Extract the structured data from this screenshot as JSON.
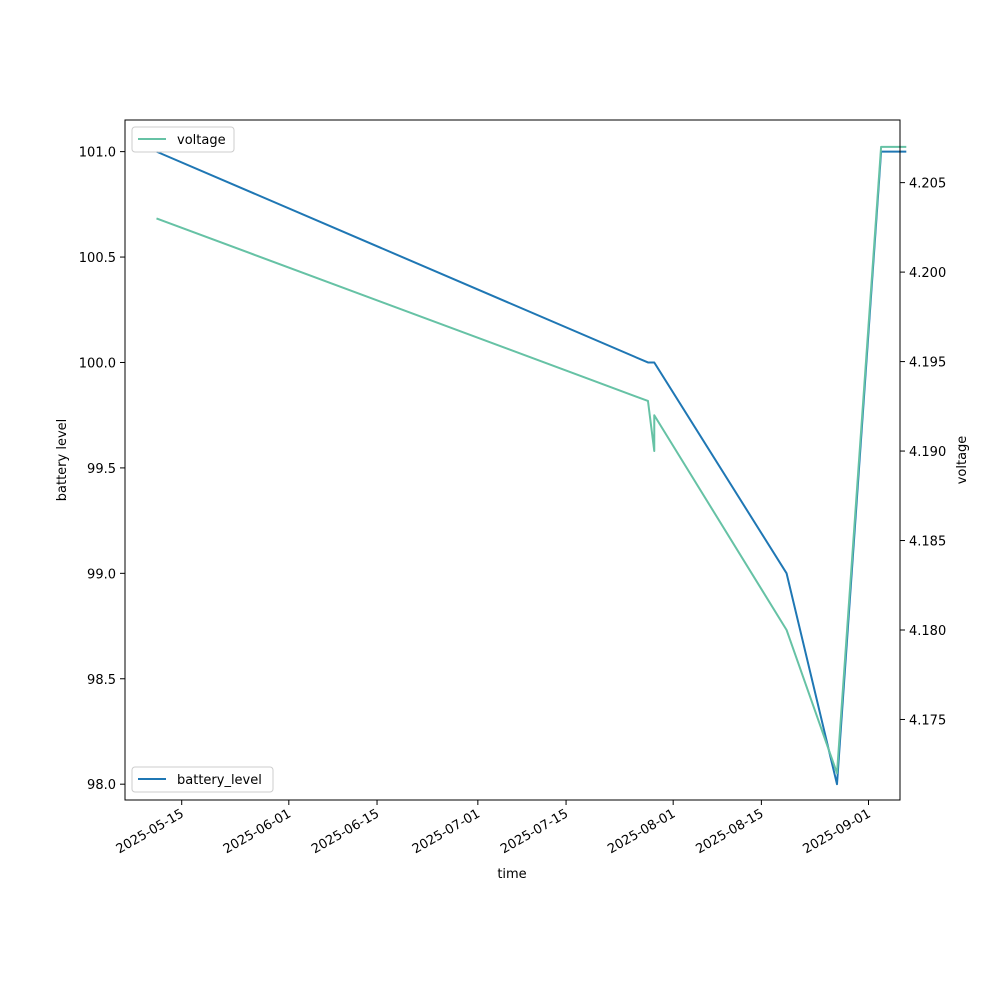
{
  "chart_data": {
    "type": "line",
    "xlabel": "time",
    "ylabel_left": "battery level",
    "ylabel_right": "voltage",
    "x_ticks": [
      "2025-05-15",
      "2025-06-01",
      "2025-06-15",
      "2025-07-01",
      "2025-07-15",
      "2025-08-01",
      "2025-08-15",
      "2025-09-01"
    ],
    "y_left_ticks": [
      "98.0",
      "98.5",
      "99.0",
      "99.5",
      "100.0",
      "100.5",
      "101.0"
    ],
    "y_right_ticks": [
      "4.175",
      "4.180",
      "4.185",
      "4.190",
      "4.195",
      "4.200",
      "4.205"
    ],
    "x_range": [
      "2025-05-06",
      "2025-09-06"
    ],
    "y_left_range": [
      97.925,
      101.15
    ],
    "y_right_range": [
      4.1705,
      4.2085
    ],
    "series": [
      {
        "name": "battery_level",
        "axis": "left",
        "color": "#1f77b4",
        "points": [
          {
            "x": "2025-05-11",
            "y": 101.0
          },
          {
            "x": "2025-07-28",
            "y": 100.0
          },
          {
            "x": "2025-07-29",
            "y": 100.0
          },
          {
            "x": "2025-08-19",
            "y": 99.0
          },
          {
            "x": "2025-08-27",
            "y": 98.0
          },
          {
            "x": "2025-09-03",
            "y": 101.0
          },
          {
            "x": "2025-09-07",
            "y": 101.0
          }
        ]
      },
      {
        "name": "voltage",
        "axis": "right",
        "color": "#66c2a5",
        "points": [
          {
            "x": "2025-05-11",
            "y": 4.203
          },
          {
            "x": "2025-07-28",
            "y": 4.1928
          },
          {
            "x": "2025-07-29",
            "y": 4.19
          },
          {
            "x": "2025-07-29",
            "y": 4.192
          },
          {
            "x": "2025-08-19",
            "y": 4.18
          },
          {
            "x": "2025-08-27",
            "y": 4.172
          },
          {
            "x": "2025-09-03",
            "y": 4.207
          },
          {
            "x": "2025-09-07",
            "y": 4.207
          }
        ]
      }
    ],
    "legends": [
      {
        "label": "voltage",
        "placement": "upper-left",
        "color": "#66c2a5"
      },
      {
        "label": "battery_level",
        "placement": "lower-left",
        "color": "#1f77b4"
      }
    ]
  }
}
